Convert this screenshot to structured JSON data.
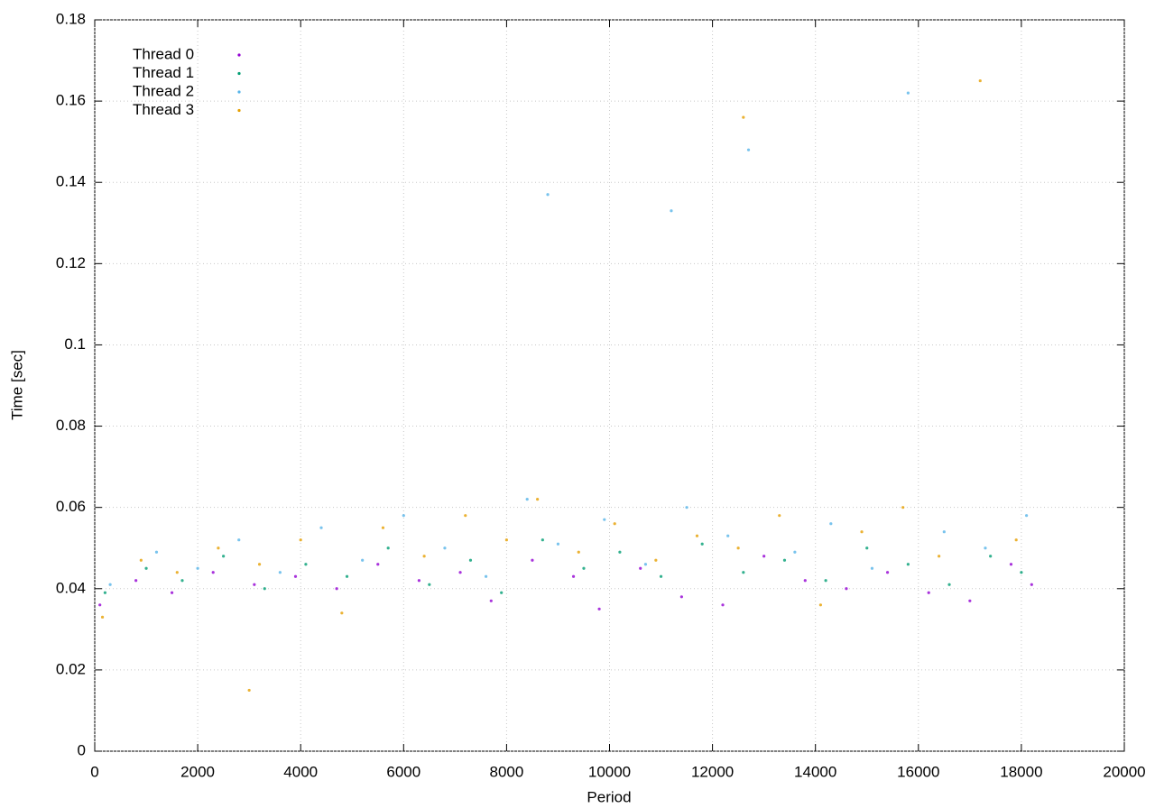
{
  "chart_data": {
    "type": "scatter",
    "x_label": "Period",
    "y_label": "Time [sec]",
    "xlim": [
      0,
      20000
    ],
    "xticks": [
      0,
      2000,
      4000,
      6000,
      8000,
      10000,
      12000,
      14000,
      16000,
      18000,
      20000
    ],
    "ylim": [
      0,
      0.18
    ],
    "yticks": [
      0,
      0.02,
      0.04,
      0.06,
      0.08,
      0.1,
      0.12,
      0.14,
      0.16,
      0.18
    ],
    "grid": true,
    "legend": "top-left",
    "series": [
      {
        "name": "Thread 0",
        "color": "#9400d3",
        "x": [
          100,
          800,
          1500,
          2300,
          3100,
          3900,
          4700,
          5500,
          6300,
          7100,
          7700,
          8500,
          9300,
          9800,
          10600,
          11400,
          12200,
          13000,
          13800,
          14600,
          15400,
          16200,
          17000,
          17800,
          18200
        ],
        "y": [
          0.036,
          0.042,
          0.039,
          0.044,
          0.041,
          0.043,
          0.04,
          0.046,
          0.042,
          0.044,
          0.037,
          0.047,
          0.043,
          0.035,
          0.045,
          0.038,
          0.036,
          0.048,
          0.042,
          0.04,
          0.044,
          0.039,
          0.037,
          0.046,
          0.041
        ]
      },
      {
        "name": "Thread 1",
        "color": "#009e73",
        "x": [
          200,
          1000,
          1700,
          2500,
          3300,
          4100,
          4900,
          5700,
          6500,
          7300,
          7900,
          8700,
          9500,
          10200,
          11000,
          11800,
          12600,
          13400,
          14200,
          15000,
          15800,
          16600,
          17400,
          18000
        ],
        "y": [
          0.039,
          0.045,
          0.042,
          0.048,
          0.04,
          0.046,
          0.043,
          0.05,
          0.041,
          0.047,
          0.039,
          0.052,
          0.045,
          0.049,
          0.043,
          0.051,
          0.044,
          0.047,
          0.042,
          0.05,
          0.046,
          0.041,
          0.048,
          0.044
        ]
      },
      {
        "name": "Thread 2",
        "color": "#56b4e9",
        "x": [
          300,
          1200,
          2000,
          2800,
          3600,
          4400,
          5200,
          6000,
          6800,
          7600,
          8400,
          9000,
          9900,
          10700,
          11500,
          12300,
          12700,
          13600,
          14300,
          15100,
          15800,
          16500,
          17300,
          18100,
          8800,
          11200
        ],
        "y": [
          0.041,
          0.049,
          0.045,
          0.052,
          0.044,
          0.055,
          0.047,
          0.058,
          0.05,
          0.043,
          0.062,
          0.051,
          0.057,
          0.046,
          0.06,
          0.053,
          0.148,
          0.049,
          0.056,
          0.045,
          0.162,
          0.054,
          0.05,
          0.058,
          0.137,
          0.133
        ]
      },
      {
        "name": "Thread 3",
        "color": "#e69f00",
        "x": [
          150,
          900,
          1600,
          2400,
          3200,
          4000,
          4800,
          5600,
          6400,
          7200,
          8000,
          8600,
          9400,
          10100,
          10900,
          11700,
          12500,
          13300,
          14100,
          14900,
          15700,
          16400,
          17200,
          17900,
          12600,
          3000
        ],
        "y": [
          0.033,
          0.047,
          0.044,
          0.05,
          0.046,
          0.052,
          0.034,
          0.055,
          0.048,
          0.058,
          0.052,
          0.062,
          0.049,
          0.056,
          0.047,
          0.053,
          0.05,
          0.058,
          0.036,
          0.054,
          0.06,
          0.048,
          0.165,
          0.052,
          0.156,
          0.015
        ]
      }
    ]
  }
}
